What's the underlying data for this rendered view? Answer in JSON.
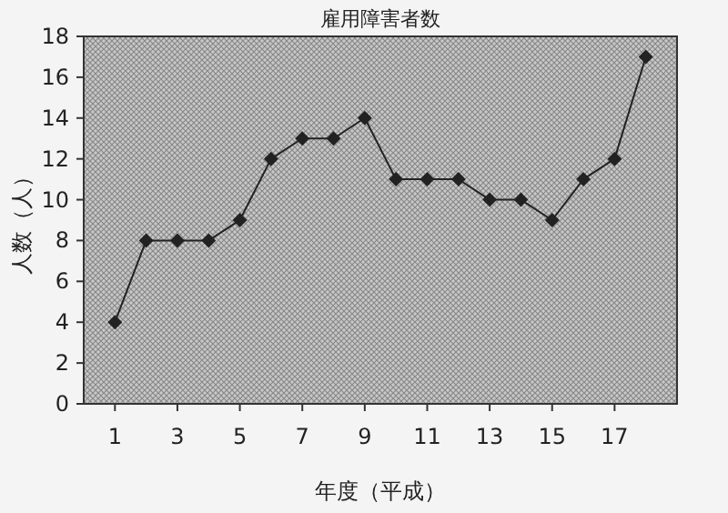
{
  "chart_data": {
    "type": "line",
    "title": "雇用障害者数",
    "xlabel": "年度（平成）",
    "ylabel": "人数（人）",
    "x": [
      1,
      2,
      3,
      4,
      5,
      6,
      7,
      8,
      9,
      10,
      11,
      12,
      13,
      14,
      15,
      16,
      17,
      18
    ],
    "series": [
      {
        "color": "#222222",
        "values": [
          4,
          8,
          8,
          8,
          9,
          12,
          13,
          13,
          14,
          11,
          11,
          11,
          10,
          10,
          9,
          11,
          12,
          17
        ]
      }
    ],
    "xlim": [
      0,
      19
    ],
    "xticks": [
      1,
      3,
      5,
      7,
      9,
      11,
      13,
      15,
      17
    ],
    "ylim": [
      0,
      18
    ],
    "yticks": [
      0,
      2,
      4,
      6,
      8,
      10,
      12,
      14,
      16,
      18
    ],
    "marker": "diamond",
    "line_style": "solid"
  }
}
